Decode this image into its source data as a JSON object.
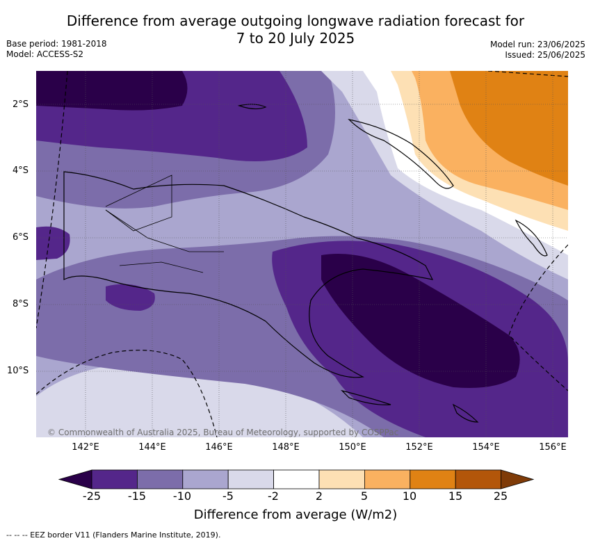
{
  "header": {
    "title_line1": "Difference from average outgoing longwave radiation forecast for",
    "title_line2": "7 to 20 July 2025",
    "base_period": "Base period: 1981-2018",
    "model": "Model: ACCESS-S2",
    "model_run": "Model run: 23/06/2025",
    "issued": "Issued: 25/06/2025"
  },
  "map": {
    "lat_labels": [
      "2°S",
      "4°S",
      "6°S",
      "8°S",
      "10°S"
    ],
    "lon_labels": [
      "142°E",
      "144°E",
      "146°E",
      "148°E",
      "150°E",
      "152°E",
      "154°E",
      "156°E"
    ],
    "credit": "© Commonwealth of Australia 2025, Bureau of Meteorology, supported by COSPPac"
  },
  "colorbar": {
    "labels": [
      "-25",
      "-15",
      "-10",
      "-5",
      "-2",
      "2",
      "5",
      "10",
      "15",
      "25"
    ],
    "colors": [
      "#2a0049",
      "#54268a",
      "#7c6daa",
      "#aaa6cf",
      "#d9d9ea",
      "#ffffff",
      "#fde0b4",
      "#fab160",
      "#e08214",
      "#b3560a",
      "#7f3b08"
    ],
    "title": "Difference from average (W/m2)"
  },
  "footnote": "--  --  -- EEZ border V11 (Flanders Marine Institute, 2019)."
}
